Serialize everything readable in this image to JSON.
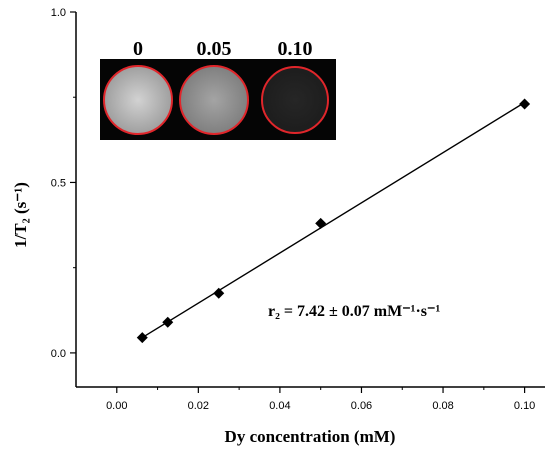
{
  "chart_data": {
    "type": "scatter",
    "xlabel": "Dy concentration (mM)",
    "ylabel": "1/T₂ (s⁻¹)",
    "xlim": [
      -0.01,
      0.105
    ],
    "ylim": [
      -0.1,
      1.0
    ],
    "x_ticks": [
      "0.00",
      "0.02",
      "0.04",
      "0.06",
      "0.08",
      "0.10"
    ],
    "y_ticks": [
      "0.0",
      "0.5",
      "1.0"
    ],
    "series": [
      {
        "x": [
          0.00625,
          0.0125,
          0.025,
          0.05,
          0.1
        ],
        "y": [
          0.045,
          0.09,
          0.175,
          0.38,
          0.73
        ],
        "marker": "diamond",
        "fit": "linear"
      }
    ],
    "annotation": "r₂ = 7.42 ± 0.07 mM⁻¹·s⁻¹",
    "inset": {
      "labels": [
        "0",
        "0.05",
        "0.10"
      ],
      "circle_border_color": "#e0262b"
    }
  }
}
